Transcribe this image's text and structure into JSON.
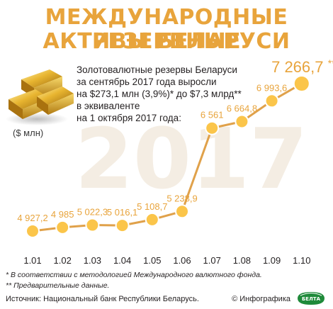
{
  "title_line1": "МЕЖДУНАРОДНЫЕ РЕЗЕРВНЫЕ",
  "title_line2": "АКТИВЫ БЕЛАРУСИ",
  "description": [
    "Золотовалютные резервы Беларуси",
    "за сентябрь 2017 года выросли",
    "на $273,1 млн (3,9%)* до $7,3 млрд**",
    "в эквиваленте",
    "на 1 октября 2017 года:"
  ],
  "unit_label": "($ млн)",
  "background_year": "2017",
  "notes": [
    "* В соответствии с методологией Международного валютного фонда.",
    "** Предварительные данные."
  ],
  "source": "Источник: Национальный банк Республики Беларусь.",
  "credit": "© Инфографика",
  "logo_text": "БЕЛТА",
  "colors": {
    "accent": "#e8a43c",
    "line": "#e0a14a",
    "marker": "#f5b342",
    "marker_fill": "#fbc54a",
    "watermark": "#f4ede3"
  },
  "chart_data": {
    "type": "line",
    "categories": [
      "1.01",
      "1.02",
      "1.03",
      "1.04",
      "1.05",
      "1.06",
      "1.07",
      "1.08",
      "1.09",
      "1.10"
    ],
    "values": [
      4927.2,
      4985,
      5022.3,
      5016.1,
      5108.7,
      5238.9,
      6561,
      6664.8,
      6993.6,
      7266.7
    ],
    "value_labels": [
      "4 927,2",
      "4 985",
      "5 022,3",
      "5 016,1",
      "5 108,7",
      "5 238,9",
      "6 561",
      "6 664,8",
      "6 993,6",
      "7 266,7"
    ],
    "last_label_suffix": "**",
    "xlabel": "",
    "ylabel": "($ млн)"
  }
}
